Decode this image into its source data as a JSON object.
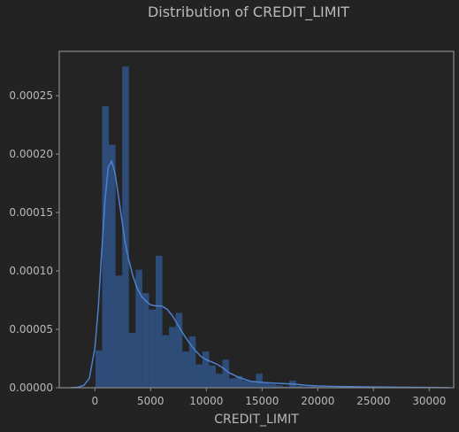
{
  "chart_data": {
    "type": "bar",
    "title": "Distribution of CREDIT_LIMIT",
    "xlabel": "CREDIT_LIMIT",
    "ylabel": "",
    "xlim": [
      -3200,
      32200
    ],
    "ylim": [
      0,
      0.000288
    ],
    "grid": false,
    "legend": "none",
    "xticks": [
      0,
      5000,
      10000,
      15000,
      20000,
      25000,
      30000
    ],
    "xtick_labels": [
      "0",
      "5000",
      "10000",
      "15000",
      "20000",
      "25000",
      "30000"
    ],
    "yticks": [
      0,
      5e-05,
      0.0001,
      0.00015,
      0.0002,
      0.00025
    ],
    "ytick_labels": [
      "0.00000",
      "0.00005",
      "0.00010",
      "0.00015",
      "0.00020",
      "0.00025"
    ],
    "histogram": {
      "bin_width": 600,
      "bins": [
        {
          "x0": 50,
          "value": 3.2e-05
        },
        {
          "x0": 650,
          "value": 0.000241
        },
        {
          "x0": 1250,
          "value": 0.000208
        },
        {
          "x0": 1850,
          "value": 9.6e-05
        },
        {
          "x0": 2450,
          "value": 0.000275
        },
        {
          "x0": 3050,
          "value": 4.7e-05
        },
        {
          "x0": 3650,
          "value": 0.000101
        },
        {
          "x0": 4250,
          "value": 8.1e-05
        },
        {
          "x0": 4850,
          "value": 6.7e-05
        },
        {
          "x0": 5450,
          "value": 0.000113
        },
        {
          "x0": 6050,
          "value": 4.5e-05
        },
        {
          "x0": 6650,
          "value": 5.2e-05
        },
        {
          "x0": 7250,
          "value": 6.4e-05
        },
        {
          "x0": 7850,
          "value": 3.1e-05
        },
        {
          "x0": 8450,
          "value": 4.4e-05
        },
        {
          "x0": 9050,
          "value": 2e-05
        },
        {
          "x0": 9650,
          "value": 3.1e-05
        },
        {
          "x0": 10250,
          "value": 1.9e-05
        },
        {
          "x0": 10850,
          "value": 1.2e-05
        },
        {
          "x0": 11450,
          "value": 2.4e-05
        },
        {
          "x0": 12050,
          "value": 8e-06
        },
        {
          "x0": 12650,
          "value": 1e-05
        },
        {
          "x0": 13250,
          "value": 6e-06
        },
        {
          "x0": 13850,
          "value": 5e-06
        },
        {
          "x0": 14450,
          "value": 1.2e-05
        },
        {
          "x0": 15050,
          "value": 4e-06
        },
        {
          "x0": 15650,
          "value": 3e-06
        },
        {
          "x0": 16250,
          "value": 2e-06
        },
        {
          "x0": 16850,
          "value": 1e-06
        },
        {
          "x0": 17450,
          "value": 6e-06
        },
        {
          "x0": 18050,
          "value": 1.5e-06
        },
        {
          "x0": 18650,
          "value": 1e-06
        },
        {
          "x0": 19250,
          "value": 1e-06
        },
        {
          "x0": 19850,
          "value": 5e-07
        },
        {
          "x0": 22450,
          "value": 4e-07
        },
        {
          "x0": 29450,
          "value": 3e-07
        }
      ]
    },
    "kde": {
      "x": [
        -2200,
        -1500,
        -1000,
        -500,
        0,
        300,
        600,
        900,
        1200,
        1500,
        1800,
        2100,
        2400,
        2700,
        3000,
        3400,
        3800,
        4200,
        4600,
        5000,
        5500,
        6000,
        6500,
        7000,
        7500,
        8000,
        8500,
        9000,
        9500,
        10000,
        10500,
        11000,
        11500,
        12000,
        13000,
        14000,
        15000,
        16000,
        17000,
        18000,
        19000,
        20000,
        22000,
        24000,
        26000,
        28000,
        30000,
        31800
      ],
      "y": [
        0.0,
        5e-07,
        2e-06,
        8e-06,
        3.4e-05,
        6.8e-05,
        0.000115,
        0.00016,
        0.000189,
        0.000194,
        0.000184,
        0.000165,
        0.000145,
        0.000125,
        0.000111,
        9.6e-05,
        8.5e-05,
        7.8e-05,
        7.4e-05,
        7.1e-05,
        7e-05,
        7e-05,
        6.7e-05,
        6.1e-05,
        5.3e-05,
        4.5e-05,
        3.8e-05,
        3.2e-05,
        2.7e-05,
        2.4e-05,
        2.2e-05,
        2e-05,
        1.7e-05,
        1.3e-05,
        8.5e-06,
        5.5e-06,
        4.5e-06,
        4e-06,
        3.5e-06,
        3e-06,
        2e-06,
        1.5e-06,
        1e-06,
        8e-07,
        6e-07,
        4e-07,
        3e-07,
        1e-07
      ]
    },
    "colors": {
      "background": "#232323",
      "plot_background": "#242424",
      "frame": "#8a8a8a",
      "bars": "#2d4d78",
      "kde_line": "#4e7fd0",
      "text": "#b9b9b9"
    }
  }
}
